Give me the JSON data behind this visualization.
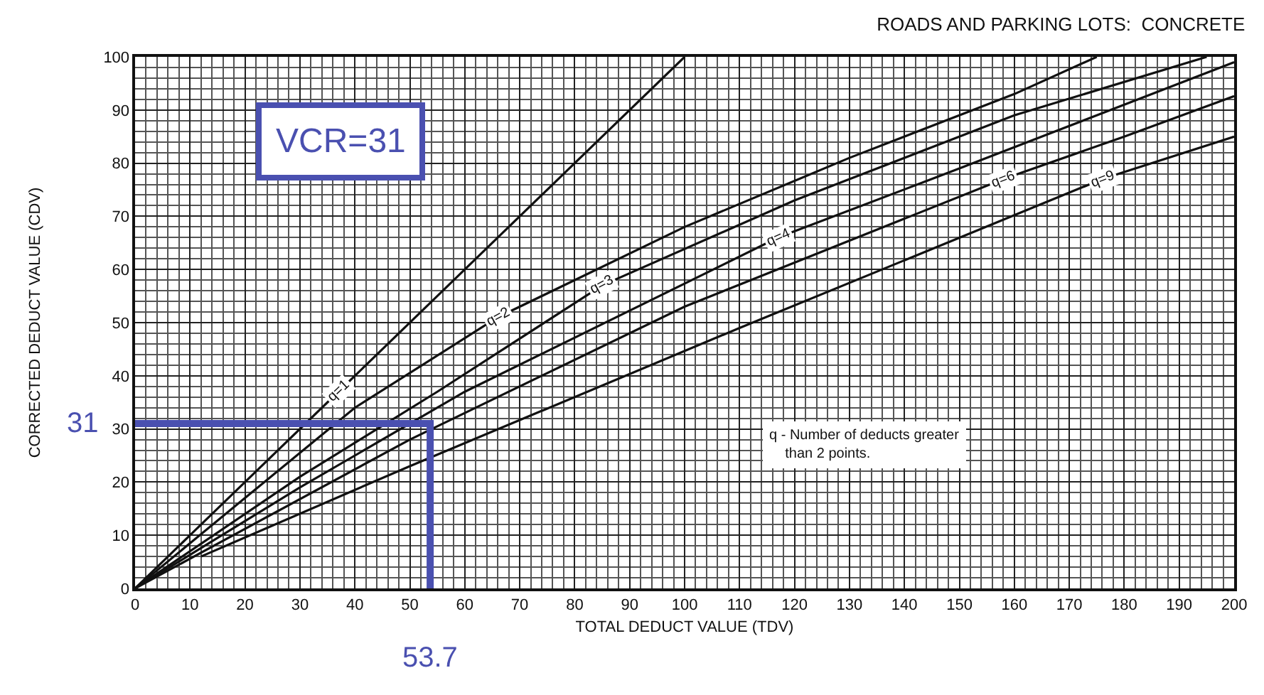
{
  "chart_data": {
    "type": "line",
    "title": "ROADS AND PARKING LOTS:  CONCRETE",
    "xlabel": "TOTAL DEDUCT VALUE (TDV)",
    "ylabel": "CORRECTED DEDUCT VALUE (CDV)",
    "xlim": [
      0,
      200
    ],
    "ylim": [
      0,
      100
    ],
    "xticks": [
      0,
      10,
      20,
      30,
      40,
      50,
      60,
      70,
      80,
      90,
      100,
      110,
      120,
      130,
      140,
      150,
      160,
      170,
      180,
      190,
      200
    ],
    "yticks": [
      0,
      10,
      20,
      30,
      40,
      50,
      60,
      70,
      80,
      90,
      100
    ],
    "grid": true,
    "legend": false,
    "marker": "none",
    "line_style": "solid",
    "series": [
      {
        "name": "q=1",
        "color": "#111111",
        "x": [
          0,
          10,
          20,
          37,
          60,
          100
        ],
        "values": [
          0,
          10,
          20,
          37,
          60,
          100
        ]
      },
      {
        "name": "q=2",
        "color": "#111111",
        "x": [
          0,
          20,
          40,
          66,
          100,
          130,
          160,
          175
        ],
        "values": [
          0,
          17,
          34,
          51,
          68,
          81,
          93,
          100
        ]
      },
      {
        "name": "q=3",
        "color": "#111111",
        "x": [
          0,
          30,
          55,
          85,
          120,
          160,
          195
        ],
        "values": [
          0,
          21,
          37,
          57,
          73,
          89,
          100
        ]
      },
      {
        "name": "q=4",
        "color": "#111111",
        "x": [
          0,
          30,
          60,
          117,
          150,
          175,
          200
        ],
        "values": [
          0,
          19,
          37,
          66,
          79,
          89,
          99
        ]
      },
      {
        "name": "q=6",
        "color": "#111111",
        "x": [
          0,
          50,
          100,
          158,
          180,
          200
        ],
        "values": [
          0,
          28,
          53,
          77,
          85,
          92.6
        ]
      },
      {
        "name": "q=9",
        "color": "#111111",
        "x": [
          12,
          50,
          110,
          176,
          200
        ],
        "values": [
          6,
          23,
          49,
          77,
          85
        ]
      },
      {
        "color": "#4a50b0",
        "x": [
          0,
          53.7,
          53.7
        ],
        "values": [
          31,
          31,
          0
        ]
      }
    ],
    "annotations": [
      "VCR=31",
      {
        "text": "31",
        "x": 0,
        "y": 31
      },
      {
        "text": "53.7",
        "x": 53.7,
        "y": 0
      },
      "q - Number of deducts greater\n    than 2 points."
    ]
  }
}
